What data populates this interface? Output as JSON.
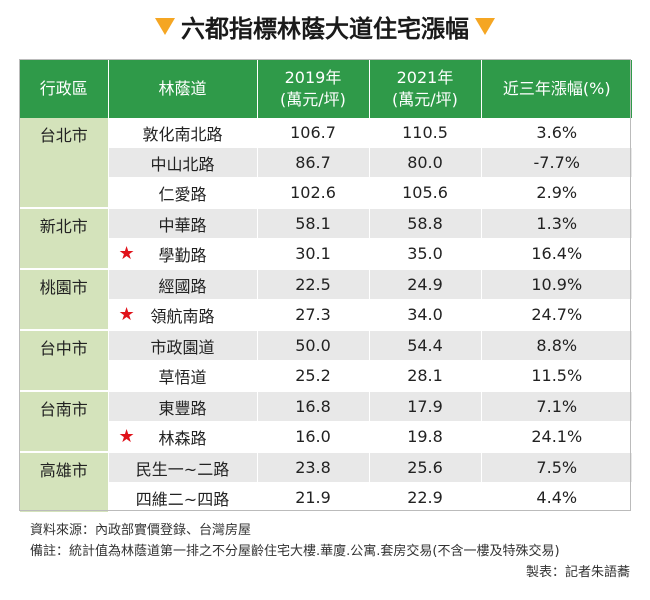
{
  "title": "六都指標林蔭大道住宅漲幅",
  "header": {
    "district": "行政區",
    "road": "林蔭道",
    "y2019_line1": "2019年",
    "y2019_line2": "(萬元/坪)",
    "y2021_line1": "2021年",
    "y2021_line2": "(萬元/坪)",
    "change": "近三年漲幅(%)"
  },
  "colors": {
    "header_bg": "#2f9a49",
    "region_bg": "#d4e3bb",
    "row_shade": "#e8e8e8",
    "star": "#e0121a",
    "title_triangle": "#f5a623"
  },
  "star_symbol": "★",
  "groups": [
    {
      "district": "台北市",
      "rows": [
        {
          "road": "敦化南北路",
          "p2019": "106.7",
          "p2021": "110.5",
          "change": "3.6%",
          "star": false
        },
        {
          "road": "中山北路",
          "p2019": "86.7",
          "p2021": "80.0",
          "change": "-7.7%",
          "star": false
        },
        {
          "road": "仁愛路",
          "p2019": "102.6",
          "p2021": "105.6",
          "change": "2.9%",
          "star": false
        }
      ]
    },
    {
      "district": "新北市",
      "rows": [
        {
          "road": "中華路",
          "p2019": "58.1",
          "p2021": "58.8",
          "change": "1.3%",
          "star": false
        },
        {
          "road": "學勤路",
          "p2019": "30.1",
          "p2021": "35.0",
          "change": "16.4%",
          "star": true
        }
      ]
    },
    {
      "district": "桃園市",
      "rows": [
        {
          "road": "經國路",
          "p2019": "22.5",
          "p2021": "24.9",
          "change": "10.9%",
          "star": false
        },
        {
          "road": "領航南路",
          "p2019": "27.3",
          "p2021": "34.0",
          "change": "24.7%",
          "star": true
        }
      ]
    },
    {
      "district": "台中市",
      "rows": [
        {
          "road": "市政園道",
          "p2019": "50.0",
          "p2021": "54.4",
          "change": "8.8%",
          "star": false
        },
        {
          "road": "草悟道",
          "p2019": "25.2",
          "p2021": "28.1",
          "change": "11.5%",
          "star": false
        }
      ]
    },
    {
      "district": "台南市",
      "rows": [
        {
          "road": "東豐路",
          "p2019": "16.8",
          "p2021": "17.9",
          "change": "7.1%",
          "star": false
        },
        {
          "road": "林森路",
          "p2019": "16.0",
          "p2021": "19.8",
          "change": "24.1%",
          "star": true
        }
      ]
    },
    {
      "district": "高雄市",
      "rows": [
        {
          "road": "民生一~二路",
          "p2019": "23.8",
          "p2021": "25.6",
          "change": "7.5%",
          "star": false
        },
        {
          "road": "四維二~四路",
          "p2019": "21.9",
          "p2021": "22.9",
          "change": "4.4%",
          "star": false
        }
      ]
    }
  ],
  "notes": {
    "source": "資料來源：內政部實價登錄、台灣房屋",
    "remark": "備註：統計值為林蔭道第一排之不分屋齡住宅大樓.華廈.公寓.套房交易(不含一樓及特殊交易)",
    "credit": "製表：記者朱語蕎"
  }
}
